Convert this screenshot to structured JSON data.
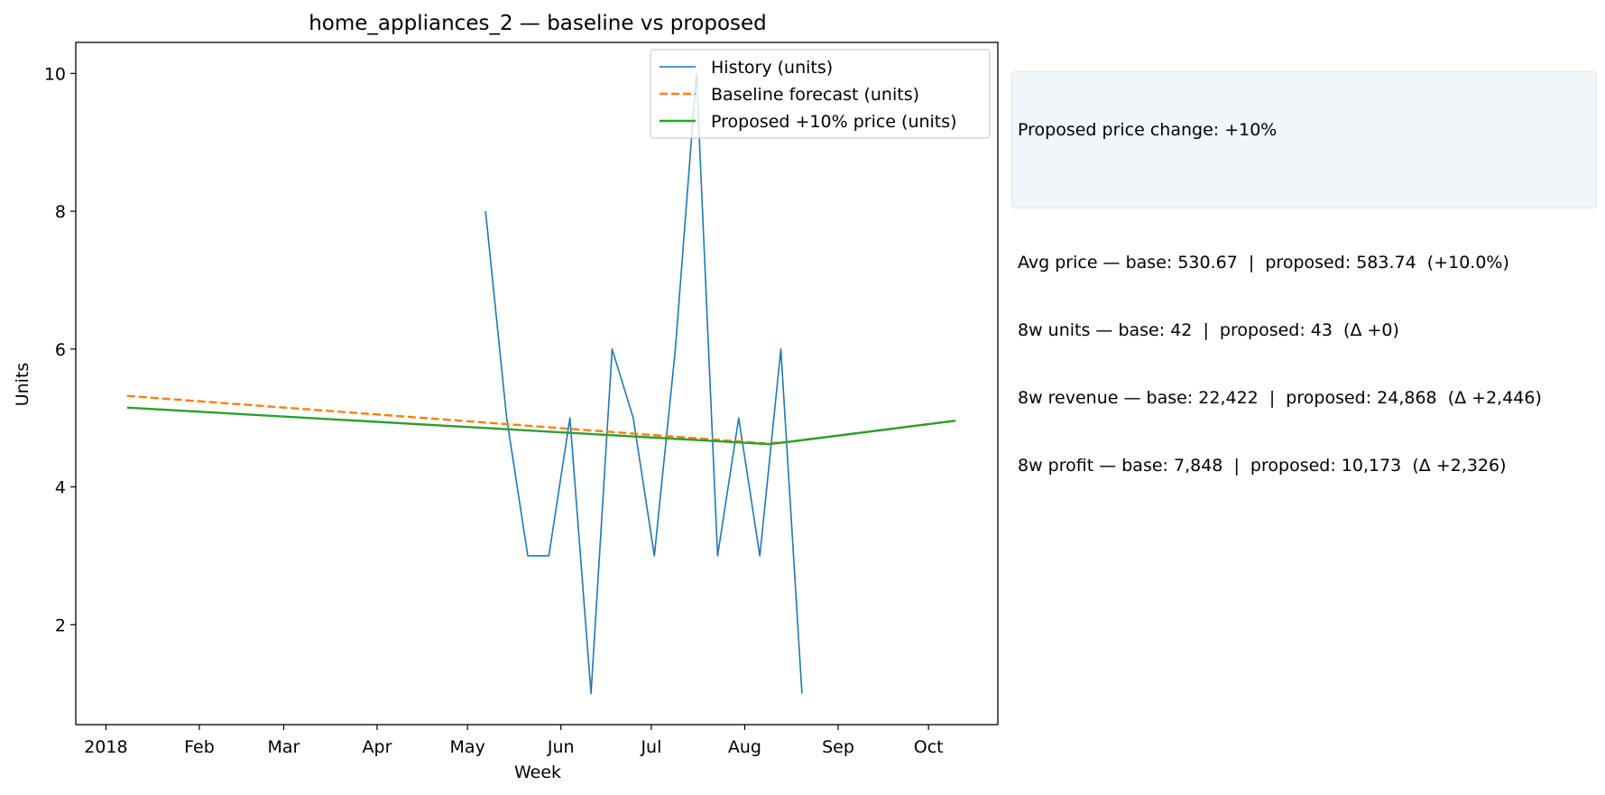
{
  "chart_data": {
    "type": "line",
    "title": "home_appliances_2 — baseline vs proposed",
    "xlabel": "Week",
    "ylabel": "Units",
    "xlim": [
      "2017-12-22",
      "2018-10-24"
    ],
    "ylim": [
      0.55,
      10.45
    ],
    "yticks": [
      2,
      4,
      6,
      8,
      10
    ],
    "xticks": [
      {
        "date": "2018-01-01",
        "label": "2018"
      },
      {
        "date": "2018-02-01",
        "label": "Feb"
      },
      {
        "date": "2018-03-01",
        "label": "Mar"
      },
      {
        "date": "2018-04-01",
        "label": "Apr"
      },
      {
        "date": "2018-05-01",
        "label": "May"
      },
      {
        "date": "2018-06-01",
        "label": "Jun"
      },
      {
        "date": "2018-07-01",
        "label": "Jul"
      },
      {
        "date": "2018-08-01",
        "label": "Aug"
      },
      {
        "date": "2018-09-01",
        "label": "Sep"
      },
      {
        "date": "2018-10-01",
        "label": "Oct"
      }
    ],
    "grid": false,
    "legend_position": "top-right",
    "series": [
      {
        "name": "History (units)",
        "color": "#1f77b4",
        "style": "solid",
        "points": [
          [
            "2018-05-07",
            8
          ],
          [
            "2018-05-14",
            5
          ],
          [
            "2018-05-21",
            3
          ],
          [
            "2018-05-28",
            3
          ],
          [
            "2018-06-04",
            5
          ],
          [
            "2018-06-11",
            1
          ],
          [
            "2018-06-18",
            6
          ],
          [
            "2018-06-25",
            5
          ],
          [
            "2018-07-02",
            3
          ],
          [
            "2018-07-09",
            6
          ],
          [
            "2018-07-16",
            10
          ],
          [
            "2018-07-23",
            3
          ],
          [
            "2018-07-30",
            5
          ],
          [
            "2018-08-06",
            3
          ],
          [
            "2018-08-13",
            6
          ],
          [
            "2018-08-20",
            1
          ]
        ]
      },
      {
        "name": "Baseline forecast (units)",
        "color": "#ff7f0e",
        "style": "dashed",
        "points": [
          [
            "2018-01-08",
            5.32
          ],
          [
            "2018-08-08",
            4.63
          ],
          [
            "2018-08-15",
            4.65
          ],
          [
            "2018-10-10",
            4.96
          ]
        ]
      },
      {
        "name": "Proposed +10% price (units)",
        "color": "#2ca02c",
        "style": "solid",
        "points": [
          [
            "2018-01-08",
            5.15
          ],
          [
            "2018-08-09",
            4.62
          ],
          [
            "2018-08-15",
            4.65
          ],
          [
            "2018-10-10",
            4.96
          ]
        ]
      }
    ]
  },
  "info_box": {
    "line1": "Proposed price change: +10%",
    "line2": "Avg price — base: 530.67  |  proposed: 583.74  (+10.0%)",
    "line3": "8w units — base: 42  |  proposed: 43  (Δ +0)",
    "line4": "8w revenue — base: 22,422  |  proposed: 24,868  (Δ +2,446)",
    "line5": "8w profit — base: 7,848  |  proposed: 10,173  (Δ +2,326)",
    "background": "#f0f6f9"
  }
}
